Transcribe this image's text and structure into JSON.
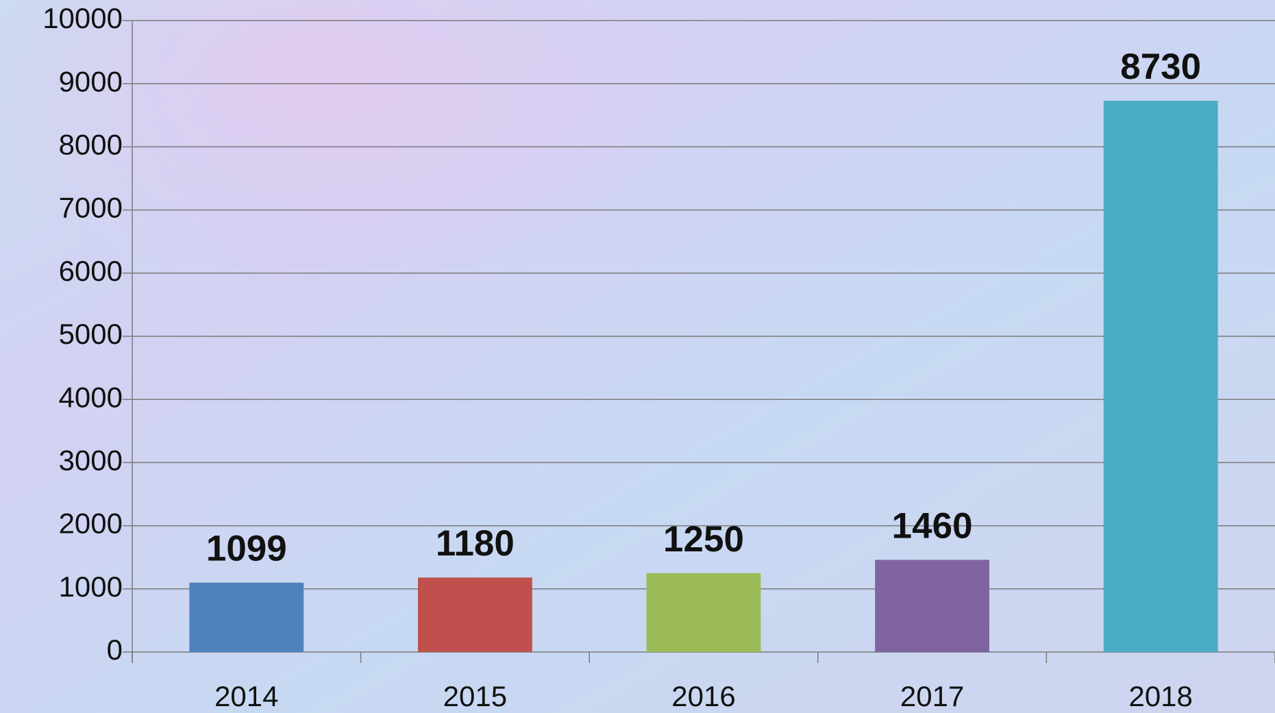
{
  "chart_data": {
    "type": "bar",
    "categories": [
      "2014",
      "2015",
      "2016",
      "2017",
      "2018"
    ],
    "values": [
      1099,
      1180,
      1250,
      1460,
      8730
    ],
    "colors": [
      "#4f81bd",
      "#c0504d",
      "#9bbb59",
      "#8064a2",
      "#4bacc6"
    ],
    "ylim": [
      0,
      10000
    ],
    "yticks": [
      0,
      1000,
      2000,
      3000,
      4000,
      5000,
      6000,
      7000,
      8000,
      9000,
      10000
    ],
    "grid": true,
    "data_labels": true
  }
}
